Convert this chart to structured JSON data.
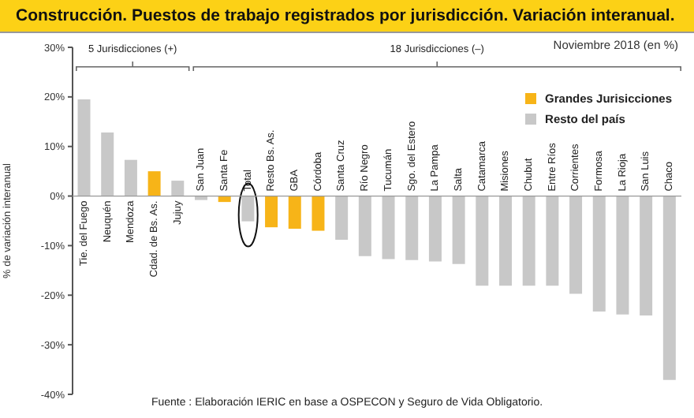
{
  "chart_data": {
    "type": "bar",
    "title": "Construcción. Puestos de trabajo registrados por jurisdicción. Variación interanual.",
    "subtitle": "Noviembre 2018 (en %)",
    "ylabel": "% de variación interanual",
    "categories": [
      "Tie. del Fuego",
      "Neuquén",
      "Mendoza",
      "Cdad. de Bs. As.",
      "Jujuy",
      "San Juan",
      "Santa Fe",
      "Total",
      "Resto Bs. As.",
      "GBA",
      "Córdoba",
      "Santa Cruz",
      "Río Negro",
      "Tucumán",
      "Sgo. del Estero",
      "La Pampa",
      "Salta",
      "Catamarca",
      "Misiones",
      "Chubut",
      "Entre Ríos",
      "Corrientes",
      "Formosa",
      "La Rioja",
      "San Luis",
      "Chaco"
    ],
    "series": [
      {
        "name": "Grandes Jurisicciones",
        "color": "#f7b418",
        "values": [
          null,
          null,
          null,
          5.0,
          null,
          null,
          -1.2,
          null,
          -6.3,
          -6.6,
          -7.0,
          null,
          null,
          null,
          null,
          null,
          null,
          null,
          null,
          null,
          null,
          null,
          null,
          null,
          null,
          null
        ]
      },
      {
        "name": "Resto del país",
        "color": "#c8c8c8",
        "values": [
          19.5,
          12.8,
          7.3,
          null,
          3.1,
          -0.8,
          null,
          -5.1,
          null,
          null,
          null,
          -8.8,
          -12.1,
          -12.7,
          -12.9,
          -13.2,
          -13.7,
          -18.1,
          -18.1,
          -18.1,
          -18.1,
          -19.7,
          -23.3,
          -23.9,
          -24.1,
          -37.1
        ]
      }
    ],
    "stacked": true,
    "ylim": [
      -40,
      30
    ],
    "yticks": [
      {
        "value": -40,
        "label": "-40%"
      },
      {
        "value": -30,
        "label": "-30%"
      },
      {
        "value": -20,
        "label": "-20%"
      },
      {
        "value": -10,
        "label": "-10%"
      },
      {
        "value": 0,
        "label": "0%"
      },
      {
        "value": 10,
        "label": "10%"
      },
      {
        "value": 20,
        "label": "20%"
      },
      {
        "value": 30,
        "label": "30%"
      }
    ],
    "legend": "top right",
    "annotations": [
      "5 Jurisdicciones (+)",
      "18 Jurisdicciones (–)",
      "Fuente : Elaboración IERIC en base a OSPECON y Seguro de Vida Obligatorio."
    ]
  }
}
